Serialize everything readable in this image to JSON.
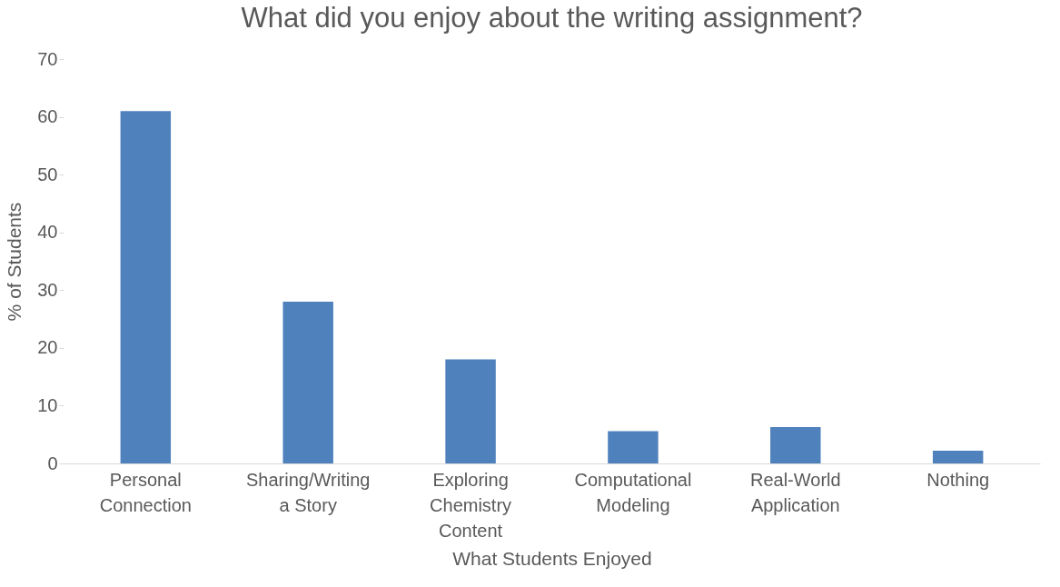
{
  "chart_data": {
    "type": "bar",
    "title": "What did you enjoy about the writing assignment?",
    "xlabel": "What Students Enjoyed",
    "ylabel": "% of Students",
    "categories": [
      "Personal Connection",
      "Sharing/Writing a Story",
      "Exploring Chemistry Content",
      "Computational Modeling",
      "Real-World Application",
      "Nothing"
    ],
    "values": [
      61,
      28,
      18,
      5.6,
      6.3,
      2.2
    ],
    "color": "#4f81bd",
    "ylim": [
      0,
      70
    ],
    "yticks": [
      0,
      10,
      20,
      30,
      40,
      50,
      60,
      70
    ],
    "grid": false
  }
}
